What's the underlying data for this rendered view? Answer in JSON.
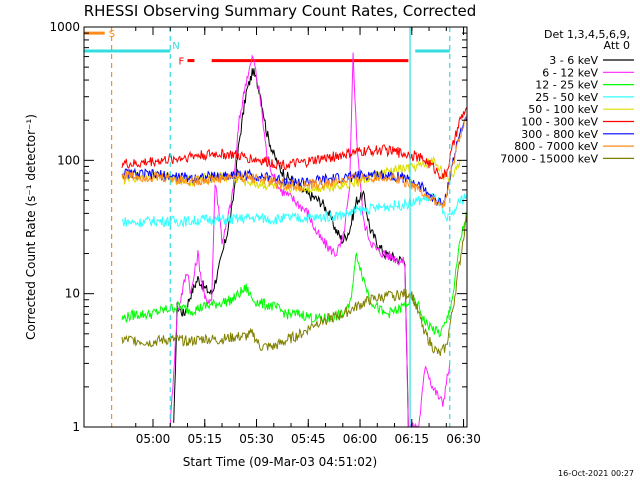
{
  "chart_data": {
    "type": "line",
    "title": "RHESSI Observing Summary Count Rates, Corrected",
    "xlabel": "Start Time (09-Mar-03 04:51:02)",
    "ylabel": "Corrected Count Rate (s⁻¹ detector⁻¹)",
    "yscale": "log",
    "xlim": [
      -11,
      100
    ],
    "ylim": [
      1,
      1000
    ],
    "x_unit": "minutes after 04:51:02",
    "x_ticks": [
      {
        "t": 9,
        "label": "05:00"
      },
      {
        "t": 24,
        "label": "05:15"
      },
      {
        "t": 39,
        "label": "05:30"
      },
      {
        "t": 54,
        "label": "05:45"
      },
      {
        "t": 69,
        "label": "06:00"
      },
      {
        "t": 84,
        "label": "06:15"
      },
      {
        "t": 99,
        "label": "06:30"
      }
    ],
    "y_ticks": [
      {
        "v": 1,
        "label": "1"
      },
      {
        "v": 10,
        "label": "10"
      },
      {
        "v": 100,
        "label": "100"
      },
      {
        "v": 1000,
        "label": "1000"
      }
    ],
    "legend_header": [
      "Det 1,3,4,5,6,9,",
      "Att 0"
    ],
    "legend_position": "right",
    "timestamp": "16-Oct-2021 00:27",
    "flags": [
      {
        "name": "S",
        "color": "#ff8c1a",
        "ranges": [
          [
            -11,
            -5
          ]
        ],
        "y": 900
      },
      {
        "name": "N",
        "color": "#33dddd",
        "ranges": [
          [
            -11,
            14
          ],
          [
            85,
            95
          ]
        ],
        "y": 660
      },
      {
        "name": "F",
        "color": "#ff0000",
        "ranges": [
          [
            19,
            21
          ],
          [
            26,
            83
          ]
        ],
        "y": 560
      }
    ],
    "vlines": [
      {
        "t": -3,
        "color": "#ff8c1a",
        "style": "dashed"
      },
      {
        "t": 14,
        "color": "#33dddd",
        "style": "dashed"
      },
      {
        "t": 83.5,
        "color": "#33dddd",
        "style": "solid"
      },
      {
        "t": 95,
        "color": "#33dddd",
        "style": "dashed"
      }
    ],
    "series": [
      {
        "name": "3 - 6 keV",
        "color": "#000000",
        "t0": 15,
        "points": [
          [
            15,
            1
          ],
          [
            16,
            8
          ],
          [
            18,
            7
          ],
          [
            20,
            10
          ],
          [
            22,
            13
          ],
          [
            24,
            11
          ],
          [
            26,
            10
          ],
          [
            28,
            15
          ],
          [
            30,
            25
          ],
          [
            32,
            45
          ],
          [
            34,
            140
          ],
          [
            36,
            320
          ],
          [
            38,
            470
          ],
          [
            40,
            330
          ],
          [
            42,
            160
          ],
          [
            44,
            110
          ],
          [
            46,
            85
          ],
          [
            48,
            75
          ],
          [
            50,
            70
          ],
          [
            52,
            60
          ],
          [
            54,
            55
          ],
          [
            56,
            52
          ],
          [
            58,
            48
          ],
          [
            60,
            40
          ],
          [
            62,
            30
          ],
          [
            64,
            25
          ],
          [
            66,
            30
          ],
          [
            68,
            50
          ],
          [
            70,
            55
          ],
          [
            72,
            30
          ],
          [
            74,
            24
          ],
          [
            76,
            20
          ],
          [
            78,
            19
          ],
          [
            80,
            18
          ],
          [
            82,
            18
          ],
          [
            83,
            1
          ]
        ]
      },
      {
        "name": "6 - 12 keV",
        "color": "#ff22ff",
        "t0": 14,
        "points": [
          [
            14,
            1
          ],
          [
            16,
            7
          ],
          [
            18,
            12
          ],
          [
            19,
            15
          ],
          [
            20,
            10
          ],
          [
            22,
            20
          ],
          [
            23,
            13
          ],
          [
            24,
            9
          ],
          [
            26,
            9
          ],
          [
            27,
            70
          ],
          [
            28,
            45
          ],
          [
            29,
            25
          ],
          [
            30,
            30
          ],
          [
            32,
            55
          ],
          [
            34,
            200
          ],
          [
            36,
            400
          ],
          [
            38,
            600
          ],
          [
            40,
            300
          ],
          [
            42,
            110
          ],
          [
            44,
            75
          ],
          [
            46,
            60
          ],
          [
            48,
            55
          ],
          [
            50,
            50
          ],
          [
            52,
            45
          ],
          [
            54,
            40
          ],
          [
            56,
            30
          ],
          [
            58,
            25
          ],
          [
            60,
            22
          ],
          [
            62,
            20
          ],
          [
            64,
            25
          ],
          [
            66,
            60
          ],
          [
            67,
            650
          ],
          [
            68,
            150
          ],
          [
            70,
            35
          ],
          [
            72,
            25
          ],
          [
            74,
            21
          ],
          [
            76,
            20
          ],
          [
            78,
            19
          ],
          [
            80,
            18
          ],
          [
            82,
            17
          ],
          [
            83,
            1
          ],
          [
            86,
            1
          ],
          [
            88,
            3
          ],
          [
            90,
            2
          ],
          [
            93,
            1.5
          ],
          [
            95,
            3
          ]
        ]
      },
      {
        "name": "12 - 25 keV",
        "color": "#00ff00",
        "points": [
          [
            0,
            6.5
          ],
          [
            4,
            7
          ],
          [
            8,
            7
          ],
          [
            12,
            7.5
          ],
          [
            16,
            8
          ],
          [
            20,
            7.5
          ],
          [
            24,
            8
          ],
          [
            28,
            8.5
          ],
          [
            32,
            9
          ],
          [
            34,
            10
          ],
          [
            36,
            11
          ],
          [
            38,
            9
          ],
          [
            40,
            8.5
          ],
          [
            44,
            8
          ],
          [
            48,
            7
          ],
          [
            52,
            7
          ],
          [
            56,
            6.5
          ],
          [
            60,
            6.5
          ],
          [
            64,
            7
          ],
          [
            66,
            8
          ],
          [
            68,
            20
          ],
          [
            70,
            13
          ],
          [
            72,
            9
          ],
          [
            76,
            7
          ],
          [
            80,
            7.5
          ],
          [
            84,
            9
          ],
          [
            86,
            8
          ],
          [
            88,
            6
          ],
          [
            92,
            5
          ],
          [
            94,
            6
          ],
          [
            96,
            10
          ],
          [
            98,
            25
          ],
          [
            100,
            40
          ]
        ]
      },
      {
        "name": "25 - 50 keV",
        "color": "#33ffff",
        "points": [
          [
            0,
            35
          ],
          [
            4,
            34
          ],
          [
            8,
            35
          ],
          [
            12,
            35
          ],
          [
            16,
            35
          ],
          [
            20,
            35
          ],
          [
            24,
            36
          ],
          [
            28,
            36
          ],
          [
            32,
            36
          ],
          [
            36,
            37
          ],
          [
            40,
            37
          ],
          [
            44,
            36
          ],
          [
            48,
            37
          ],
          [
            52,
            37
          ],
          [
            56,
            37
          ],
          [
            60,
            38
          ],
          [
            64,
            39
          ],
          [
            68,
            42
          ],
          [
            72,
            43
          ],
          [
            76,
            45
          ],
          [
            80,
            46
          ],
          [
            84,
            48
          ],
          [
            88,
            52
          ],
          [
            90,
            54
          ],
          [
            92,
            48
          ],
          [
            93,
            40
          ],
          [
            94,
            35
          ],
          [
            96,
            40
          ],
          [
            98,
            50
          ],
          [
            100,
            55
          ]
        ]
      },
      {
        "name": "50 - 100 keV",
        "color": "#dddd00",
        "points": [
          [
            0,
            72
          ],
          [
            4,
            75
          ],
          [
            8,
            78
          ],
          [
            12,
            76
          ],
          [
            16,
            72
          ],
          [
            20,
            70
          ],
          [
            24,
            73
          ],
          [
            28,
            75
          ],
          [
            32,
            74
          ],
          [
            36,
            70
          ],
          [
            40,
            66
          ],
          [
            44,
            64
          ],
          [
            48,
            63
          ],
          [
            52,
            62
          ],
          [
            56,
            62
          ],
          [
            60,
            64
          ],
          [
            64,
            66
          ],
          [
            68,
            68
          ],
          [
            72,
            75
          ],
          [
            76,
            80
          ],
          [
            80,
            85
          ],
          [
            84,
            88
          ],
          [
            88,
            92
          ],
          [
            90,
            100
          ],
          [
            92,
            90
          ],
          [
            94,
            70
          ],
          [
            96,
            80
          ],
          [
            98,
            100
          ]
        ]
      },
      {
        "name": "100 - 300 keV",
        "color": "#ff0000",
        "points": [
          [
            0,
            95
          ],
          [
            4,
            93
          ],
          [
            8,
            98
          ],
          [
            12,
            100
          ],
          [
            16,
            103
          ],
          [
            20,
            108
          ],
          [
            24,
            110
          ],
          [
            28,
            112
          ],
          [
            32,
            110
          ],
          [
            36,
            105
          ],
          [
            40,
            100
          ],
          [
            44,
            95
          ],
          [
            48,
            93
          ],
          [
            52,
            95
          ],
          [
            56,
            100
          ],
          [
            60,
            105
          ],
          [
            64,
            110
          ],
          [
            68,
            115
          ],
          [
            72,
            118
          ],
          [
            76,
            120
          ],
          [
            80,
            115
          ],
          [
            84,
            110
          ],
          [
            88,
            100
          ],
          [
            90,
            90
          ],
          [
            92,
            80
          ],
          [
            93,
            75
          ],
          [
            94,
            80
          ],
          [
            96,
            130
          ],
          [
            98,
            200
          ],
          [
            100,
            250
          ]
        ]
      },
      {
        "name": "300 - 800 keV",
        "color": "#0000ff",
        "points": [
          [
            0,
            80
          ],
          [
            4,
            79
          ],
          [
            8,
            78
          ],
          [
            12,
            77
          ],
          [
            16,
            75
          ],
          [
            20,
            74
          ],
          [
            24,
            75
          ],
          [
            28,
            76
          ],
          [
            32,
            78
          ],
          [
            36,
            78
          ],
          [
            40,
            76
          ],
          [
            44,
            72
          ],
          [
            48,
            70
          ],
          [
            52,
            68
          ],
          [
            56,
            70
          ],
          [
            60,
            72
          ],
          [
            64,
            74
          ],
          [
            68,
            76
          ],
          [
            72,
            78
          ],
          [
            76,
            78
          ],
          [
            80,
            76
          ],
          [
            84,
            70
          ],
          [
            88,
            60
          ],
          [
            90,
            52
          ],
          [
            92,
            48
          ],
          [
            93,
            47
          ],
          [
            94,
            55
          ],
          [
            96,
            100
          ],
          [
            98,
            160
          ],
          [
            100,
            220
          ]
        ]
      },
      {
        "name": "800 - 7000 keV",
        "color": "#ff8c1a",
        "points": [
          [
            0,
            78
          ],
          [
            4,
            76
          ],
          [
            8,
            75
          ],
          [
            12,
            74
          ],
          [
            16,
            72
          ],
          [
            20,
            70
          ],
          [
            24,
            71
          ],
          [
            28,
            73
          ],
          [
            32,
            75
          ],
          [
            36,
            75
          ],
          [
            40,
            73
          ],
          [
            44,
            68
          ],
          [
            48,
            65
          ],
          [
            52,
            64
          ],
          [
            56,
            66
          ],
          [
            60,
            68
          ],
          [
            64,
            70
          ],
          [
            68,
            73
          ],
          [
            72,
            75
          ],
          [
            76,
            75
          ],
          [
            80,
            73
          ],
          [
            84,
            66
          ],
          [
            88,
            56
          ],
          [
            90,
            50
          ],
          [
            92,
            46
          ],
          [
            93,
            46
          ],
          [
            94,
            52
          ],
          [
            96,
            95
          ],
          [
            98,
            155
          ],
          [
            100,
            210
          ]
        ]
      },
      {
        "name": "7000 - 15000 keV",
        "color": "#808000",
        "points": [
          [
            0,
            4.5
          ],
          [
            4,
            4.5
          ],
          [
            8,
            4.3
          ],
          [
            12,
            4.5
          ],
          [
            16,
            4.5
          ],
          [
            20,
            4.4
          ],
          [
            24,
            4.6
          ],
          [
            28,
            4.5
          ],
          [
            32,
            4.7
          ],
          [
            36,
            4.8
          ],
          [
            38,
            5
          ],
          [
            40,
            4
          ],
          [
            44,
            4
          ],
          [
            48,
            4.5
          ],
          [
            52,
            5
          ],
          [
            56,
            6
          ],
          [
            60,
            6.5
          ],
          [
            64,
            7
          ],
          [
            68,
            8
          ],
          [
            72,
            9
          ],
          [
            76,
            9.5
          ],
          [
            80,
            9.8
          ],
          [
            82,
            10
          ],
          [
            84,
            10
          ],
          [
            86,
            7
          ],
          [
            88,
            5
          ],
          [
            90,
            4
          ],
          [
            92,
            3.5
          ],
          [
            94,
            4
          ],
          [
            96,
            8
          ],
          [
            98,
            18
          ],
          [
            100,
            40
          ]
        ]
      }
    ]
  }
}
